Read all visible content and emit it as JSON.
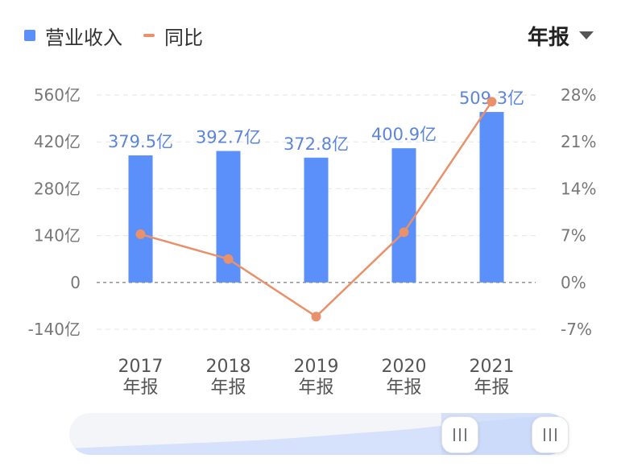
{
  "legend": {
    "revenue": {
      "label": "营业收入",
      "color": "#5b8ff9"
    },
    "yoy": {
      "label": "同比",
      "color": "#e8916a"
    }
  },
  "period_selector": {
    "label": "年报",
    "icon": "caret-down-icon"
  },
  "chart_data": {
    "type": "bar",
    "categories": [
      "2017\n年报",
      "2018\n年报",
      "2019\n年报",
      "2020\n年报",
      "2021\n年报"
    ],
    "series": [
      {
        "name": "营业收入",
        "type": "bar",
        "axis": "left",
        "color": "#5b8ff9",
        "values": [
          379.5,
          392.7,
          372.8,
          400.9,
          509.3
        ],
        "labels": [
          "379.5亿",
          "392.7亿",
          "372.8亿",
          "400.9亿",
          "509.3亿"
        ]
      },
      {
        "name": "同比",
        "type": "line",
        "axis": "right",
        "color": "#e8916a",
        "values": [
          7.2,
          3.5,
          -5.1,
          7.5,
          27.0
        ]
      }
    ],
    "y_left": {
      "range": [
        -140,
        560
      ],
      "ticks": [
        560,
        420,
        280,
        140,
        0,
        -140
      ],
      "tick_labels": [
        "560亿",
        "420亿",
        "280亿",
        "140亿",
        "0",
        "-140亿"
      ]
    },
    "y_right": {
      "range": [
        -7,
        28
      ],
      "ticks": [
        28,
        21,
        14,
        7,
        0,
        -7
      ],
      "tick_labels": [
        "28%",
        "21%",
        "14%",
        "7%",
        "0%",
        "-7%"
      ]
    },
    "grid": "horizontal-dashed"
  },
  "range_slider": {
    "left_handle": "drag-handle-icon",
    "right_handle": "drag-handle-icon"
  }
}
